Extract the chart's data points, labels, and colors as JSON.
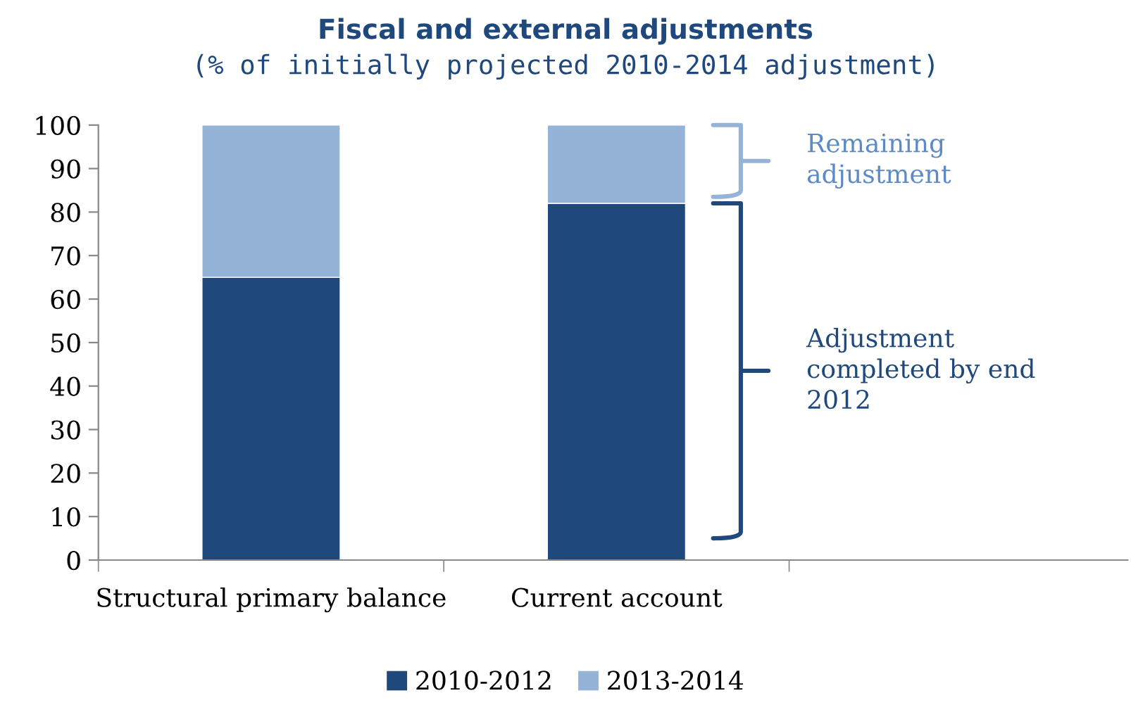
{
  "chart_data": {
    "type": "bar",
    "title": "Fiscal and external adjustments",
    "subtitle": "(% of initially projected 2010-2014 adjustment)",
    "categories": [
      "Structural primary balance",
      "Current account",
      null
    ],
    "series": [
      {
        "name": "2010-2012",
        "color": "#1f497d",
        "values": [
          65,
          82,
          null
        ]
      },
      {
        "name": "2013-2014",
        "color": "#95b3d7",
        "values": [
          35,
          18,
          null
        ]
      }
    ],
    "stacked": true,
    "ylim": [
      0,
      100
    ],
    "yticks": [
      0,
      10,
      20,
      30,
      40,
      50,
      60,
      70,
      80,
      90,
      100
    ],
    "grid": false,
    "legend": "bottom",
    "annotations": [
      "Adjustment completed by end 2012",
      "Remaining adjustment"
    ]
  }
}
